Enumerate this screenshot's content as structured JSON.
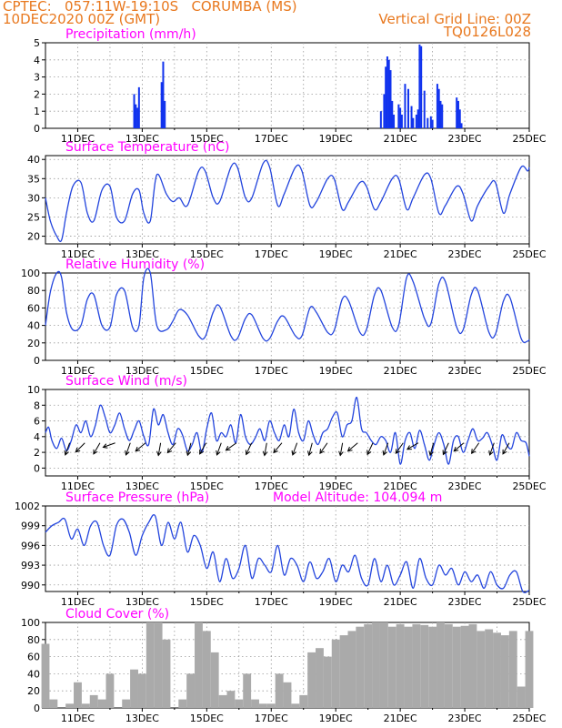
{
  "header": {
    "line1": "CPTEC:   057:11W-19:10S   CORUMBA (MS)",
    "line2": "10DEC2020 00Z (GMT)",
    "right1": "Vertical Grid Line: 00Z",
    "right2": "TQ0126L028"
  },
  "colors": {
    "header": "#e8781e",
    "title": "#ff00ff",
    "line": "#2244dd",
    "bar": "#1133ee",
    "cloud": "#aaaaaa"
  },
  "chart_data": [
    {
      "type": "bar",
      "title": "Precipitation (mm/h)",
      "ylim": [
        0,
        5
      ],
      "yticks": [
        "0",
        "1",
        "2",
        "3",
        "4",
        "5"
      ],
      "xticks": [
        "11DEC",
        "13DEC",
        "15DEC",
        "17DEC",
        "19DEC",
        "21DEC",
        "23DEC",
        "25DEC"
      ],
      "x_range_days": [
        10,
        25
      ],
      "bars": [
        [
          12.75,
          2.0
        ],
        [
          12.8,
          1.4
        ],
        [
          12.85,
          1.2
        ],
        [
          12.9,
          2.4
        ],
        [
          13.6,
          2.7
        ],
        [
          13.65,
          3.9
        ],
        [
          13.7,
          1.6
        ],
        [
          20.4,
          1.0
        ],
        [
          20.5,
          2.0
        ],
        [
          20.55,
          3.6
        ],
        [
          20.6,
          4.2
        ],
        [
          20.65,
          4.0
        ],
        [
          20.7,
          3.4
        ],
        [
          20.75,
          1.6
        ],
        [
          20.8,
          0.8
        ],
        [
          20.95,
          1.4
        ],
        [
          21.0,
          1.2
        ],
        [
          21.05,
          0.8
        ],
        [
          21.15,
          2.6
        ],
        [
          21.25,
          2.3
        ],
        [
          21.35,
          1.3
        ],
        [
          21.4,
          0.6
        ],
        [
          21.5,
          0.8
        ],
        [
          21.55,
          1.1
        ],
        [
          21.6,
          4.9
        ],
        [
          21.65,
          4.8
        ],
        [
          21.75,
          2.2
        ],
        [
          21.85,
          0.6
        ],
        [
          21.95,
          0.7
        ],
        [
          22.0,
          0.5
        ],
        [
          22.15,
          2.6
        ],
        [
          22.2,
          2.3
        ],
        [
          22.25,
          1.6
        ],
        [
          22.3,
          1.4
        ],
        [
          22.75,
          1.8
        ],
        [
          22.8,
          1.6
        ],
        [
          22.85,
          1.1
        ],
        [
          22.9,
          0.3
        ]
      ]
    },
    {
      "type": "line",
      "title": "Surface Temperature (nC)",
      "ylim": [
        18,
        41
      ],
      "yticks": [
        "20",
        "25",
        "30",
        "35",
        "40"
      ],
      "xticks": [
        "11DEC",
        "13DEC",
        "15DEC",
        "17DEC",
        "19DEC",
        "21DEC",
        "23DEC",
        "25DEC"
      ],
      "x": [
        10,
        10.15,
        10.35,
        10.5,
        10.65,
        10.85,
        11.1,
        11.3,
        11.5,
        11.75,
        12,
        12.2,
        12.45,
        12.7,
        12.9,
        13.05,
        13.25,
        13.45,
        13.75,
        13.95,
        14.15,
        14.4,
        14.75,
        14.95,
        15.2,
        15.4,
        15.75,
        15.95,
        16.2,
        16.4,
        16.75,
        16.95,
        17.2,
        17.4,
        17.75,
        17.95,
        18.2,
        18.4,
        18.75,
        18.95,
        19.2,
        19.4,
        19.75,
        19.95,
        20.2,
        20.4,
        20.75,
        20.95,
        21.2,
        21.4,
        21.75,
        21.95,
        22.2,
        22.4,
        22.75,
        22.95,
        23.2,
        23.4,
        23.75,
        23.95,
        24.2,
        24.4,
        24.75,
        24.95,
        25
      ],
      "y": [
        30,
        24,
        20,
        19,
        26,
        33,
        34,
        26,
        24,
        32,
        33,
        25,
        24,
        31,
        32,
        26,
        24,
        36,
        31,
        29,
        30,
        28,
        37,
        37,
        30,
        29,
        38,
        38,
        30,
        30,
        39,
        38,
        28,
        31,
        38,
        37,
        28,
        29,
        35,
        35,
        27,
        29,
        34,
        33,
        27,
        29,
        35,
        35,
        27,
        30,
        36,
        35,
        26,
        28,
        33,
        31,
        24,
        28,
        33,
        34,
        26,
        31,
        38,
        37,
        38
      ]
    },
    {
      "type": "line",
      "title": "Relative Humidity (%)",
      "ylim": [
        0,
        100
      ],
      "yticks": [
        "0",
        "20",
        "40",
        "60",
        "80",
        "100"
      ],
      "xticks": [
        "11DEC",
        "13DEC",
        "15DEC",
        "17DEC",
        "19DEC",
        "21DEC",
        "23DEC",
        "25DEC"
      ],
      "x": [
        10,
        10.15,
        10.35,
        10.5,
        10.65,
        10.85,
        11.1,
        11.3,
        11.5,
        11.75,
        12,
        12.2,
        12.45,
        12.7,
        12.9,
        13.05,
        13.25,
        13.45,
        13.75,
        13.95,
        14.15,
        14.4,
        14.75,
        14.95,
        15.2,
        15.4,
        15.75,
        15.95,
        16.2,
        16.4,
        16.75,
        16.95,
        17.2,
        17.4,
        17.75,
        17.95,
        18.2,
        18.4,
        18.75,
        18.95,
        19.2,
        19.4,
        19.75,
        19.95,
        20.2,
        20.4,
        20.75,
        20.95,
        21.2,
        21.4,
        21.75,
        21.95,
        22.2,
        22.4,
        22.75,
        22.95,
        23.2,
        23.4,
        23.75,
        23.95,
        24.2,
        24.4,
        24.75,
        24.95,
        25
      ],
      "y": [
        40,
        78,
        100,
        95,
        55,
        35,
        40,
        70,
        75,
        40,
        38,
        75,
        80,
        38,
        40,
        95,
        100,
        40,
        35,
        45,
        58,
        52,
        28,
        27,
        55,
        62,
        28,
        25,
        48,
        52,
        25,
        25,
        45,
        50,
        28,
        28,
        60,
        55,
        32,
        34,
        70,
        68,
        32,
        35,
        75,
        80,
        38,
        40,
        95,
        90,
        48,
        42,
        88,
        90,
        38,
        35,
        75,
        80,
        32,
        30,
        68,
        72,
        25,
        22,
        24
      ]
    },
    {
      "type": "line",
      "title": "Surface Wind (m/s)",
      "ylim": [
        -1,
        10
      ],
      "yticks": [
        "0",
        "2",
        "4",
        "6",
        "8",
        "10"
      ],
      "xticks": [
        "11DEC",
        "13DEC",
        "15DEC",
        "17DEC",
        "19DEC",
        "21DEC",
        "23DEC",
        "25DEC"
      ],
      "x": [
        10,
        10.1,
        10.2,
        10.35,
        10.5,
        10.65,
        10.8,
        10.95,
        11.1,
        11.25,
        11.4,
        11.55,
        11.7,
        11.85,
        12,
        12.15,
        12.3,
        12.45,
        12.6,
        12.75,
        12.9,
        13.05,
        13.2,
        13.35,
        13.5,
        13.65,
        13.8,
        13.95,
        14.1,
        14.25,
        14.4,
        14.55,
        14.7,
        14.85,
        15,
        15.15,
        15.3,
        15.45,
        15.6,
        15.75,
        15.9,
        16.05,
        16.2,
        16.35,
        16.5,
        16.65,
        16.8,
        16.95,
        17.1,
        17.25,
        17.4,
        17.55,
        17.7,
        17.85,
        18,
        18.15,
        18.3,
        18.45,
        18.6,
        18.75,
        18.9,
        19.05,
        19.2,
        19.35,
        19.5,
        19.65,
        19.8,
        19.95,
        20.1,
        20.25,
        20.4,
        20.55,
        20.7,
        20.85,
        21,
        21.15,
        21.3,
        21.45,
        21.6,
        21.75,
        21.9,
        22.05,
        22.2,
        22.35,
        22.5,
        22.65,
        22.8,
        22.95,
        23.1,
        23.25,
        23.4,
        23.55,
        23.7,
        23.85,
        24,
        24.15,
        24.3,
        24.45,
        24.6,
        24.75,
        24.9,
        25
      ],
      "y": [
        4.5,
        5.2,
        3.5,
        2.5,
        3.8,
        2.2,
        3.5,
        5.5,
        4.5,
        6.0,
        4.0,
        5.5,
        8.0,
        6.5,
        4.5,
        5.5,
        7.0,
        5.0,
        3.5,
        4.8,
        6.0,
        4.0,
        3.0,
        7.5,
        5.5,
        6.8,
        4.5,
        3.0,
        5.0,
        4.2,
        2.2,
        3.0,
        4.5,
        2.0,
        5.0,
        7.0,
        3.5,
        4.5,
        4.0,
        5.5,
        3.2,
        6.8,
        4.0,
        3.0,
        3.8,
        5.0,
        3.5,
        6.0,
        4.5,
        3.5,
        5.5,
        4.0,
        7.5,
        4.5,
        3.5,
        6.0,
        4.2,
        3.0,
        4.5,
        5.0,
        6.5,
        7.0,
        4.0,
        5.5,
        6.0,
        9.0,
        5.0,
        4.5,
        3.5,
        3.0,
        4.0,
        3.5,
        2.0,
        4.5,
        0.5,
        3.5,
        4.5,
        2.5,
        4.8,
        3.0,
        1.0,
        3.0,
        4.5,
        3.0,
        0.5,
        3.5,
        4.0,
        2.0,
        3.5,
        5.0,
        3.5,
        3.8,
        4.5,
        3.0,
        1.0,
        4.2,
        3.0,
        2.5,
        4.5,
        3.5,
        3.2,
        1.5
      ]
    },
    {
      "type": "line",
      "title": "Surface Pressure (hPa)",
      "subtitle": "Model Altitude: 104.094 m",
      "ylim": [
        989,
        1002
      ],
      "yticks": [
        "990",
        "993",
        "996",
        "999",
        "1002"
      ],
      "xticks": [
        "11DEC",
        "13DEC",
        "15DEC",
        "17DEC",
        "19DEC",
        "21DEC",
        "23DEC",
        "25DEC"
      ],
      "x": [
        10,
        10.2,
        10.4,
        10.6,
        10.8,
        11.0,
        11.2,
        11.4,
        11.6,
        11.8,
        12.0,
        12.2,
        12.4,
        12.6,
        12.8,
        13.0,
        13.2,
        13.4,
        13.6,
        13.8,
        14.0,
        14.2,
        14.4,
        14.6,
        14.8,
        15.0,
        15.2,
        15.4,
        15.6,
        15.8,
        16.0,
        16.2,
        16.4,
        16.6,
        16.8,
        17.0,
        17.2,
        17.4,
        17.6,
        17.8,
        18.0,
        18.2,
        18.4,
        18.6,
        18.8,
        19.0,
        19.2,
        19.4,
        19.6,
        19.8,
        20.0,
        20.2,
        20.4,
        20.6,
        20.8,
        21.0,
        21.2,
        21.4,
        21.6,
        21.8,
        22.0,
        22.2,
        22.4,
        22.6,
        22.8,
        23.0,
        23.2,
        23.4,
        23.6,
        23.8,
        24.0,
        24.2,
        24.4,
        24.6,
        24.8,
        25.0
      ],
      "y": [
        998,
        999,
        999.5,
        1000,
        997,
        998.5,
        996,
        999,
        999.5,
        996,
        994.5,
        999,
        1000,
        998,
        994.5,
        997.5,
        999.5,
        1000.5,
        996,
        999.5,
        997,
        999.5,
        995,
        997.5,
        996,
        992.5,
        995,
        990.5,
        994,
        991,
        992.5,
        996,
        991,
        994,
        993,
        992,
        996,
        991.5,
        994,
        993,
        990.5,
        993.5,
        991,
        992,
        994,
        990.5,
        993,
        992,
        994.5,
        991,
        990,
        994,
        990.5,
        993,
        990,
        991.5,
        993.5,
        989.5,
        994,
        991,
        990,
        993,
        991.5,
        992.5,
        990,
        992,
        990.5,
        991.5,
        989.5,
        992,
        990,
        989.5,
        991.5,
        992,
        989,
        989.2
      ]
    },
    {
      "type": "bar",
      "title": "Cloud Cover (%)",
      "ylim": [
        0,
        100
      ],
      "yticks": [
        "0",
        "20",
        "40",
        "60",
        "80",
        "100"
      ],
      "xticks": [
        "11DEC",
        "13DEC",
        "15DEC",
        "17DEC",
        "19DEC",
        "21DEC",
        "23DEC",
        "25DEC"
      ],
      "x": [
        10,
        10.25,
        10.5,
        10.75,
        11,
        11.25,
        11.5,
        11.75,
        12,
        12.25,
        12.5,
        12.75,
        13,
        13.25,
        13.5,
        13.75,
        14,
        14.25,
        14.5,
        14.75,
        15,
        15.25,
        15.5,
        15.75,
        16,
        16.25,
        16.5,
        16.75,
        17,
        17.25,
        17.5,
        17.75,
        18,
        18.25,
        18.5,
        18.75,
        19,
        19.25,
        19.5,
        19.75,
        20,
        20.25,
        20.5,
        20.75,
        21,
        21.25,
        21.5,
        21.75,
        22,
        22.25,
        22.5,
        22.75,
        23,
        23.25,
        23.5,
        23.75,
        24,
        24.25,
        24.5,
        24.75,
        25
      ],
      "values": [
        75,
        10,
        0,
        5,
        30,
        5,
        15,
        10,
        40,
        0,
        10,
        45,
        40,
        100,
        100,
        80,
        0,
        10,
        40,
        100,
        90,
        65,
        15,
        20,
        10,
        40,
        10,
        5,
        5,
        40,
        30,
        5,
        15,
        65,
        70,
        60,
        80,
        85,
        90,
        95,
        98,
        100,
        100,
        95,
        98,
        95,
        98,
        97,
        95,
        100,
        98,
        95,
        96,
        98,
        90,
        92,
        88,
        85,
        90,
        25,
        90
      ]
    }
  ]
}
